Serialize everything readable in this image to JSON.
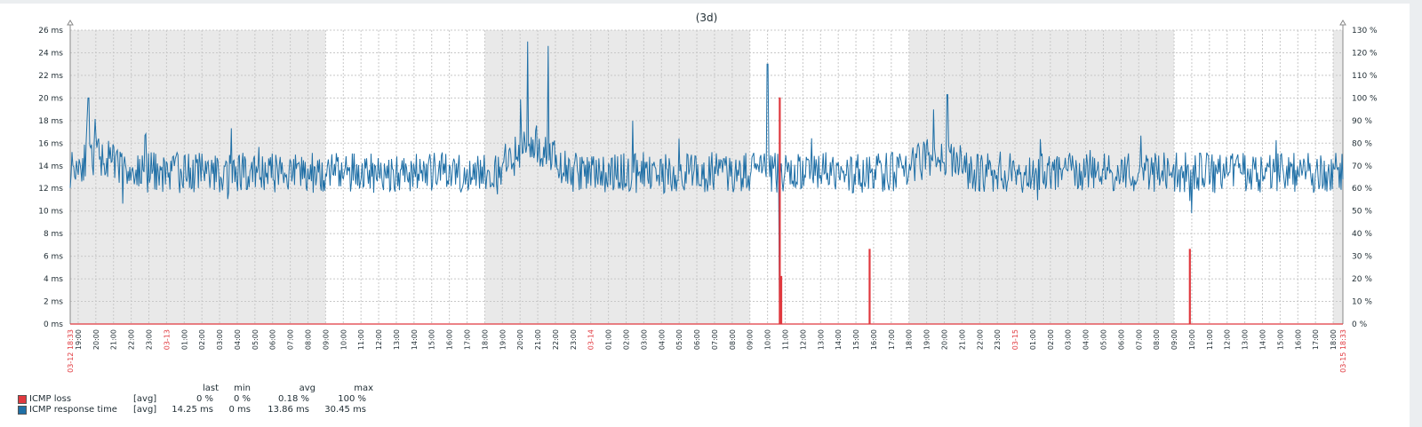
{
  "chart_data": {
    "type": "line",
    "title": "(3d)",
    "y_left": {
      "unit": "ms",
      "ticks": [
        "0 ms",
        "2 ms",
        "4 ms",
        "6 ms",
        "8 ms",
        "10 ms",
        "12 ms",
        "14 ms",
        "16 ms",
        "18 ms",
        "20 ms",
        "22 ms",
        "24 ms",
        "26 ms"
      ],
      "ylim": [
        0,
        26
      ]
    },
    "y_right": {
      "unit": "%",
      "ticks": [
        "0 %",
        "10 %",
        "20 %",
        "30 %",
        "40 %",
        "50 %",
        "60 %",
        "70 %",
        "80 %",
        "90 %",
        "100 %",
        "110 %",
        "120 %",
        "130 %"
      ],
      "ylim": [
        0,
        130
      ]
    },
    "x": {
      "start_label": "03-12 18:33",
      "end_label": "03-15 18:33",
      "tick_labels": [
        "19:00",
        "20:00",
        "21:00",
        "22:00",
        "23:00",
        "03-13",
        "01:00",
        "02:00",
        "03:00",
        "04:00",
        "05:00",
        "06:00",
        "07:00",
        "08:00",
        "09:00",
        "10:00",
        "11:00",
        "12:00",
        "13:00",
        "14:00",
        "15:00",
        "16:00",
        "17:00",
        "18:00",
        "19:00",
        "20:00",
        "21:00",
        "22:00",
        "23:00",
        "03-14",
        "01:00",
        "02:00",
        "03:00",
        "04:00",
        "05:00",
        "06:00",
        "07:00",
        "08:00",
        "09:00",
        "10:00",
        "11:00",
        "12:00",
        "13:00",
        "14:00",
        "15:00",
        "16:00",
        "17:00",
        "18:00",
        "19:00",
        "20:00",
        "21:00",
        "22:00",
        "23:00",
        "03-15",
        "01:00",
        "02:00",
        "03:00",
        "04:00",
        "05:00",
        "06:00",
        "07:00",
        "08:00",
        "09:00",
        "10:00",
        "11:00",
        "12:00",
        "13:00",
        "14:00",
        "15:00",
        "16:00",
        "17:00",
        "18:00"
      ],
      "date_labels": [
        "03-13",
        "03-14",
        "03-15"
      ]
    },
    "shaded_periods": [
      [
        "03-12 18:33",
        "03-13 09:00"
      ],
      [
        "03-13 18:00",
        "03-14 09:00"
      ],
      [
        "03-14 18:00",
        "03-15 09:00"
      ],
      [
        "03-15 18:00",
        "03-15 18:33"
      ]
    ],
    "grid": true,
    "series": [
      {
        "name": "ICMP loss",
        "axis": "right",
        "color": "#e0383e",
        "baseline": 0,
        "spikes": [
          {
            "time": "03-14 10:40",
            "value": 100
          },
          {
            "time": "03-14 10:45",
            "value": 21
          },
          {
            "time": "03-14 15:45",
            "value": 33
          },
          {
            "time": "03-15 09:52",
            "value": 33
          }
        ]
      },
      {
        "name": "ICMP response time",
        "axis": "left",
        "color": "#1f6fa6",
        "typical_range_ms": [
          12,
          16
        ],
        "peaks": [
          {
            "time": "03-12 19:35",
            "value": 20
          },
          {
            "time": "03-13 20:25",
            "value": 25
          },
          {
            "time": "03-13 21:35",
            "value": 24.6
          },
          {
            "time": "03-14 10:00",
            "value": 23
          },
          {
            "time": "03-14 10:40",
            "value": 0.5
          },
          {
            "time": "03-14 20:10",
            "value": 20.3
          },
          {
            "time": "03-15 10:00",
            "value": 9.8
          }
        ]
      }
    ]
  },
  "legend": {
    "headers": {
      "last": "last",
      "min": "min",
      "avg": "avg",
      "max": "max"
    },
    "rows": [
      {
        "name": "ICMP loss",
        "func": "[avg]",
        "last": "0 %",
        "min": "0 %",
        "avg": "0.18 %",
        "max": "100 %",
        "color": "#e0383e"
      },
      {
        "name": "ICMP response time",
        "func": "[avg]",
        "last": "14.25 ms",
        "min": "0 ms",
        "avg": "13.86 ms",
        "max": "30.45 ms",
        "color": "#1f6fa6"
      }
    ]
  }
}
